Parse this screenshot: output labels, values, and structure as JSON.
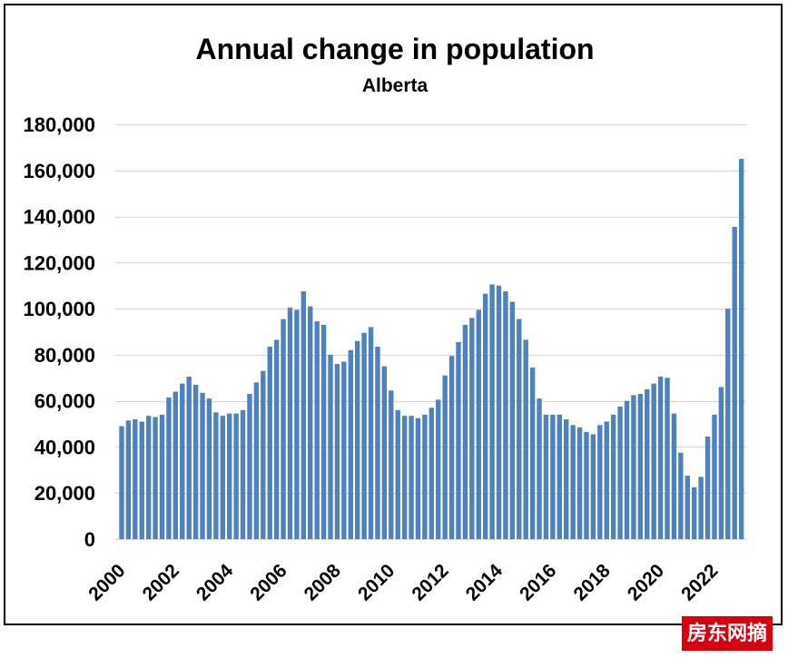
{
  "chart_data": {
    "type": "bar",
    "title": "Annual change in population",
    "subtitle": "Alberta",
    "xlabel": "",
    "ylabel": "",
    "ylim": [
      0,
      180000
    ],
    "grid": true,
    "y_ticks": [
      0,
      20000,
      40000,
      60000,
      80000,
      100000,
      120000,
      140000,
      160000,
      180000
    ],
    "y_tick_labels": [
      "0",
      "20,000",
      "40,000",
      "60,000",
      "80,000",
      "100,000",
      "120,000",
      "140,000",
      "160,000",
      "180,000"
    ],
    "colors": {
      "bar": "#4F81BD",
      "grid": "#D9D9D9",
      "border": "#000000"
    },
    "categories": [
      "2000",
      "",
      "",
      "",
      "",
      "",
      "",
      "",
      "2002",
      "",
      "",
      "",
      "",
      "",
      "",
      "",
      "2004",
      "",
      "",
      "",
      "",
      "",
      "",
      "",
      "2006",
      "",
      "",
      "",
      "",
      "",
      "",
      "",
      "2008",
      "",
      "",
      "",
      "",
      "",
      "",
      "",
      "2010",
      "",
      "",
      "",
      "",
      "",
      "",
      "",
      "2012",
      "",
      "",
      "",
      "",
      "",
      "",
      "",
      "2014",
      "",
      "",
      "",
      "",
      "",
      "",
      "",
      "2016",
      "",
      "",
      "",
      "",
      "",
      "",
      "",
      "2018",
      "",
      "",
      "",
      "",
      "",
      "",
      "",
      "2020",
      "",
      "",
      "",
      "",
      "",
      "",
      "",
      "2022",
      "",
      "",
      "",
      ""
    ],
    "values": [
      49000,
      51500,
      52000,
      51000,
      53500,
      53000,
      54000,
      61500,
      64000,
      67500,
      70500,
      67000,
      63500,
      61000,
      55000,
      53500,
      54500,
      54500,
      56000,
      63000,
      68000,
      73000,
      83500,
      86500,
      95500,
      100500,
      99500,
      107500,
      101000,
      94500,
      93000,
      80000,
      76000,
      77000,
      82000,
      86000,
      89500,
      92000,
      83500,
      75000,
      64500,
      56000,
      53500,
      53500,
      52500,
      54000,
      57000,
      60500,
      71000,
      79500,
      85500,
      93000,
      96000,
      99500,
      106500,
      110500,
      110000,
      107500,
      103000,
      95500,
      86500,
      74500,
      61000,
      54000,
      54000,
      54000,
      52000,
      49500,
      48500,
      46500,
      45500,
      49500,
      51000,
      54000,
      57500,
      60000,
      62500,
      63000,
      65000,
      67500,
      70500,
      70000,
      54500,
      37500,
      27500,
      22500,
      27000,
      44500,
      54000,
      66000,
      100000,
      135500,
      165000
    ]
  },
  "watermark": {
    "text": "房东网摘",
    "color": "#D7000F"
  }
}
